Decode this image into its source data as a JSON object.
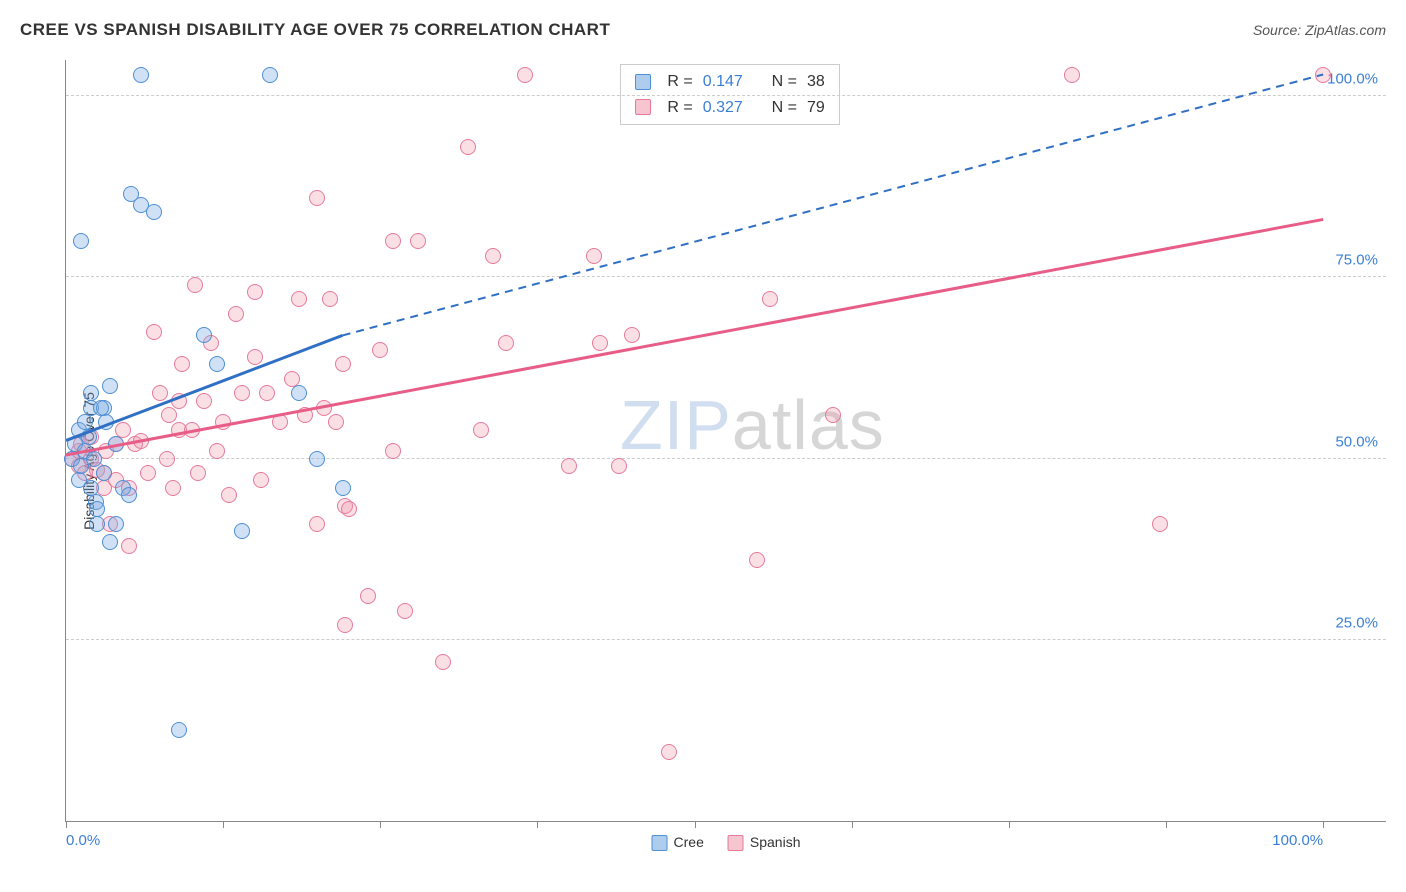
{
  "title": "CREE VS SPANISH DISABILITY AGE OVER 75 CORRELATION CHART",
  "source": "Source: ZipAtlas.com",
  "ylabel": "Disability Age Over 75",
  "watermark": {
    "part1": "ZIP",
    "part2": "atlas"
  },
  "chart": {
    "type": "scatter",
    "background_color": "#ffffff",
    "grid_color": "#cccccc",
    "grid_dash": "4,4",
    "axis_color": "#888888",
    "tick_label_color": "#3b7fd4",
    "tick_label_fontsize": 15,
    "xlim": [
      0,
      105
    ],
    "ylim": [
      0,
      105
    ],
    "xticks": [
      0,
      12.5,
      25,
      37.5,
      50,
      62.5,
      75,
      87.5,
      100
    ],
    "xtick_labels": {
      "0": "0.0%",
      "100": "100.0%"
    },
    "yticks": [
      25,
      50,
      75,
      100
    ],
    "ytick_labels": [
      "25.0%",
      "50.0%",
      "75.0%",
      "100.0%"
    ],
    "marker_size": 16,
    "marker_fill_opacity": 0.35,
    "series": {
      "cree": {
        "label": "Cree",
        "color_border": "#4f8fd4",
        "color_fill": "#78aae1",
        "r_value": "0.147",
        "n_value": "38",
        "trend_line": {
          "color": "#2f6fc4",
          "width": 3,
          "solid_from": [
            0,
            52.5
          ],
          "solid_to": [
            22,
            67
          ],
          "dashed_to": [
            100,
            103
          ],
          "dash": "8,6"
        },
        "points": [
          [
            0.5,
            50
          ],
          [
            0.7,
            52
          ],
          [
            1,
            54
          ],
          [
            1,
            47
          ],
          [
            1.2,
            49
          ],
          [
            1.5,
            51
          ],
          [
            1.5,
            55
          ],
          [
            1.8,
            53
          ],
          [
            2,
            57
          ],
          [
            2,
            59
          ],
          [
            2,
            46
          ],
          [
            2.2,
            50
          ],
          [
            2.4,
            44
          ],
          [
            2.5,
            41
          ],
          [
            2.5,
            43
          ],
          [
            3,
            57
          ],
          [
            3,
            48
          ],
          [
            3.2,
            55
          ],
          [
            3.5,
            60
          ],
          [
            3.5,
            38.5
          ],
          [
            4,
            52
          ],
          [
            5.2,
            86.5
          ],
          [
            6,
            103
          ],
          [
            6,
            85
          ],
          [
            7,
            84
          ],
          [
            4,
            41
          ],
          [
            4.5,
            46
          ],
          [
            5,
            45
          ],
          [
            9,
            12.5
          ],
          [
            11,
            67
          ],
          [
            12,
            63
          ],
          [
            14,
            40
          ],
          [
            16.2,
            103
          ],
          [
            18.5,
            59
          ],
          [
            20,
            50
          ],
          [
            22,
            46
          ],
          [
            1.2,
            80
          ],
          [
            2.8,
            57
          ]
        ]
      },
      "spanish": {
        "label": "Spanish",
        "color_border": "#e77a9b",
        "color_fill": "#f096aa",
        "r_value": "0.327",
        "n_value": "79",
        "trend_line": {
          "color": "#e85d87",
          "width": 3,
          "from": [
            0,
            50.5
          ],
          "to": [
            100,
            83
          ]
        },
        "points": [
          [
            0.5,
            50
          ],
          [
            1,
            51
          ],
          [
            1,
            49
          ],
          [
            1.2,
            52
          ],
          [
            1.5,
            48
          ],
          [
            2,
            50
          ],
          [
            2,
            53
          ],
          [
            2.5,
            48.5
          ],
          [
            3,
            46
          ],
          [
            3,
            48
          ],
          [
            3.2,
            51
          ],
          [
            3.5,
            41
          ],
          [
            4,
            52
          ],
          [
            4,
            47
          ],
          [
            4.5,
            54
          ],
          [
            5,
            46
          ],
          [
            5,
            38
          ],
          [
            5.5,
            52
          ],
          [
            6,
            52.5
          ],
          [
            6.5,
            48
          ],
          [
            7,
            67.5
          ],
          [
            7.5,
            59
          ],
          [
            8,
            50
          ],
          [
            8.2,
            56
          ],
          [
            8.5,
            46
          ],
          [
            9,
            54
          ],
          [
            9,
            58
          ],
          [
            9.2,
            63
          ],
          [
            10,
            54
          ],
          [
            10.3,
            74
          ],
          [
            10.5,
            48
          ],
          [
            11,
            58
          ],
          [
            11.5,
            66
          ],
          [
            12,
            51
          ],
          [
            12.5,
            55
          ],
          [
            13,
            45
          ],
          [
            13.5,
            70
          ],
          [
            14,
            59
          ],
          [
            15,
            64
          ],
          [
            15,
            73
          ],
          [
            15.5,
            47
          ],
          [
            16,
            59
          ],
          [
            17,
            55
          ],
          [
            18,
            61
          ],
          [
            18.5,
            72
          ],
          [
            19,
            56
          ],
          [
            20,
            41
          ],
          [
            20,
            86
          ],
          [
            20.5,
            57
          ],
          [
            21,
            72
          ],
          [
            21.5,
            55
          ],
          [
            22,
            63
          ],
          [
            22.2,
            27
          ],
          [
            22.2,
            43.5
          ],
          [
            22.5,
            43
          ],
          [
            24,
            31
          ],
          [
            25,
            65
          ],
          [
            26,
            80
          ],
          [
            26,
            51
          ],
          [
            27,
            29
          ],
          [
            28,
            80
          ],
          [
            30,
            22
          ],
          [
            32,
            93
          ],
          [
            33,
            54
          ],
          [
            34,
            78
          ],
          [
            35,
            66
          ],
          [
            36.5,
            103
          ],
          [
            40,
            49
          ],
          [
            42,
            78
          ],
          [
            42.5,
            66
          ],
          [
            44,
            49
          ],
          [
            45,
            67
          ],
          [
            48,
            9.5
          ],
          [
            55,
            36
          ],
          [
            56,
            72
          ],
          [
            61,
            56
          ],
          [
            80,
            103
          ],
          [
            87,
            41
          ],
          [
            100,
            103
          ]
        ]
      }
    },
    "stats_box": {
      "row1": {
        "r_label": "R =",
        "n_label": "N ="
      },
      "row2": {
        "r_label": "R =",
        "n_label": "N ="
      }
    },
    "legend": [
      "cree",
      "spanish"
    ]
  }
}
